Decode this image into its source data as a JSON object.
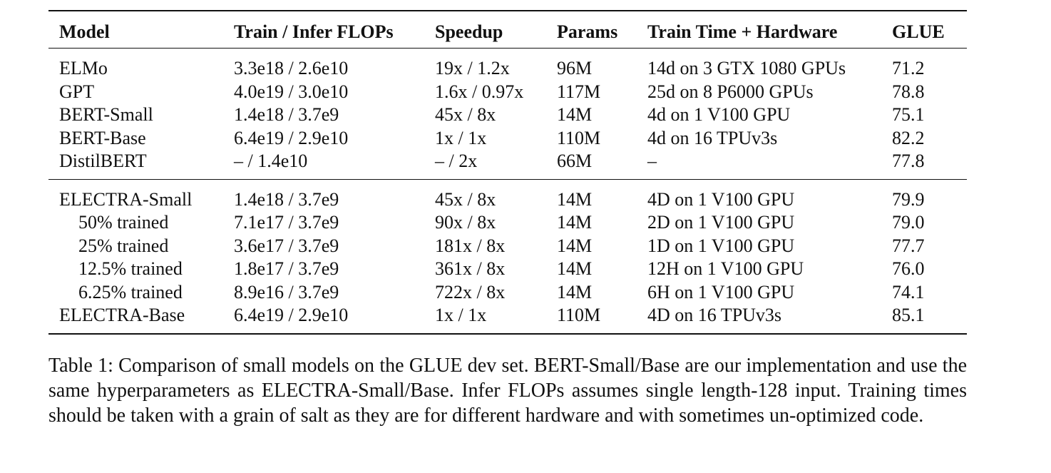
{
  "table": {
    "headers": [
      "Model",
      "Train / Infer FLOPs",
      "Speedup",
      "Params",
      "Train Time + Hardware",
      "GLUE"
    ],
    "group1": [
      [
        "ELMo",
        "3.3e18 / 2.6e10",
        "19x / 1.2x",
        "96M",
        "14d on 3 GTX 1080 GPUs",
        "71.2"
      ],
      [
        "GPT",
        "4.0e19 / 3.0e10",
        "1.6x / 0.97x",
        "117M",
        "25d on 8 P6000 GPUs",
        "78.8"
      ],
      [
        "BERT-Small",
        "1.4e18 / 3.7e9",
        "45x / 8x",
        "14M",
        "4d on 1 V100 GPU",
        "75.1"
      ],
      [
        "BERT-Base",
        "6.4e19 / 2.9e10",
        "1x / 1x",
        "110M",
        "4d on 16 TPUv3s",
        "82.2"
      ],
      [
        "DistilBERT",
        "– / 1.4e10",
        "– / 2x",
        "66M",
        "–",
        "77.8"
      ]
    ],
    "group2": [
      [
        "ELECTRA-Small",
        "1.4e18 / 3.7e9",
        "45x / 8x",
        "14M",
        "4D on 1 V100 GPU",
        "79.9"
      ],
      [
        "50% trained",
        "7.1e17 / 3.7e9",
        "90x / 8x",
        "14M",
        "2D on 1 V100 GPU",
        "79.0"
      ],
      [
        "25% trained",
        "3.6e17 / 3.7e9",
        "181x / 8x",
        "14M",
        "1D on 1 V100 GPU",
        "77.7"
      ],
      [
        "12.5% trained",
        "1.8e17 / 3.7e9",
        "361x / 8x",
        "14M",
        "12H on 1 V100 GPU",
        "76.0"
      ],
      [
        "6.25% trained",
        "8.9e16 / 3.7e9",
        "722x / 8x",
        "14M",
        "6H on 1 V100 GPU",
        "74.1"
      ],
      [
        "ELECTRA-Base",
        "6.4e19 / 2.9e10",
        "1x / 1x",
        "110M",
        "4D on 16 TPUv3s",
        "85.1"
      ]
    ]
  },
  "caption": "Table 1: Comparison of small models on the GLUE dev set. BERT-Small/Base are our implemen­tation and use the same hyperparameters as ELECTRA-Small/Base. Infer FLOPs assumes single length-128 input. Training times should be taken with a grain of salt as they are for different hard­ware and with sometimes un-optimized code."
}
